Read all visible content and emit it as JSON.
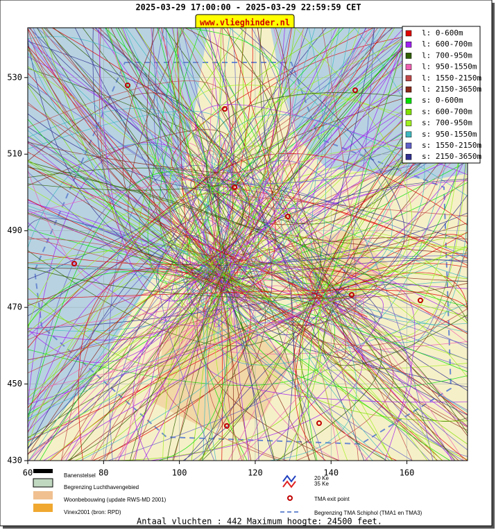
{
  "chart_data": {
    "type": "track-map",
    "title": "2025-03-29 17:00:00 - 2025-03-29 22:59:59 CET",
    "badge": "www.vlieghinder.nl",
    "xlim": [
      60,
      176
    ],
    "ylim": [
      430,
      543
    ],
    "xticks": [
      60,
      80,
      100,
      120,
      140,
      160
    ],
    "yticks": [
      430,
      450,
      470,
      490,
      510,
      530
    ],
    "grid": true,
    "legend_position": "upper right",
    "series": [
      {
        "name": "l: 0-600m",
        "color": "#e00000"
      },
      {
        "name": "l: 600-700m",
        "color": "#a020f0"
      },
      {
        "name": "l: 700-950m",
        "color": "#306000"
      },
      {
        "name": "l: 950-1550m",
        "color": "#f060b0"
      },
      {
        "name": "l: 1550-2150m",
        "color": "#c04848"
      },
      {
        "name": "l: 2150-3650m",
        "color": "#8a2a1a"
      },
      {
        "name": "s: 0-600m",
        "color": "#00e000"
      },
      {
        "name": "s: 600-700m",
        "color": "#80e000"
      },
      {
        "name": "s: 700-950m",
        "color": "#a0f020"
      },
      {
        "name": "s: 950-1550m",
        "color": "#40b8c0"
      },
      {
        "name": "s: 1550-2150m",
        "color": "#6060c8"
      },
      {
        "name": "s: 2150-3650m",
        "color": "#303090"
      }
    ],
    "map_legend": [
      "Banenstelsel",
      "Begrenzing Luchthavengebied",
      "Woonbebouwing (update RWS-MD 2001)",
      "Vinex2001 (bron: RPD)",
      "20 Ke",
      "35 Ke",
      "TMA exit point",
      "Begrenzing TMA Schiphol  (TMA1 en TMA3)"
    ],
    "footer": "Antaal vluchten : 442 Maximum hoogte: 24500 feet."
  }
}
